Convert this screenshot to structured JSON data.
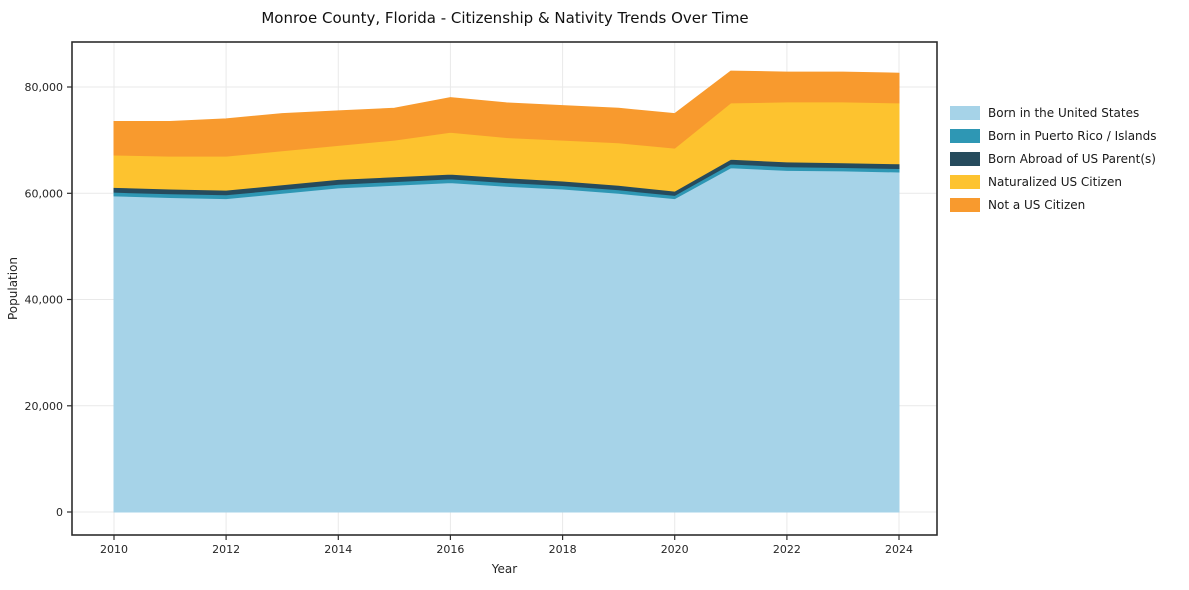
{
  "figure": {
    "title": "Monroe County, Florida - Citizenship & Nativity Trends Over Time"
  },
  "chart_data": {
    "type": "area",
    "stacked": true,
    "title": "Monroe County, Florida - Citizenship & Nativity Trends Over Time",
    "xlabel": "Year",
    "ylabel": "Population",
    "x": [
      2010,
      2011,
      2012,
      2013,
      2014,
      2015,
      2016,
      2017,
      2018,
      2019,
      2020,
      2021,
      2022,
      2023,
      2024
    ],
    "series": [
      {
        "name": "Born in the United States",
        "color": "#a6d3e8",
        "values": [
          59500,
          59200,
          59000,
          60000,
          61000,
          61500,
          62000,
          61300,
          60800,
          60000,
          59000,
          64800,
          64300,
          64200,
          64000
        ]
      },
      {
        "name": "Born in Puerto Rico / Islands",
        "color": "#2e97b4",
        "values": [
          700,
          700,
          700,
          700,
          700,
          700,
          700,
          700,
          650,
          650,
          600,
          700,
          700,
          650,
          650
        ]
      },
      {
        "name": "Born Abroad of US Parent(s)",
        "color": "#264b5d",
        "values": [
          900,
          900,
          900,
          900,
          900,
          900,
          900,
          900,
          850,
          850,
          800,
          900,
          900,
          900,
          900
        ]
      },
      {
        "name": "Naturalized US Citizen",
        "color": "#fdc32f",
        "values": [
          6100,
          6200,
          6400,
          6400,
          6400,
          6900,
          7900,
          7600,
          7700,
          8000,
          8100,
          10600,
          11300,
          11450,
          11450
        ]
      },
      {
        "name": "Not a US Citizen",
        "color": "#f89a2e",
        "values": [
          6300,
          6500,
          7000,
          7000,
          6500,
          6000,
          6500,
          6500,
          6500,
          6500,
          6500,
          6000,
          5600,
          5600,
          5600
        ]
      }
    ],
    "ylim": [
      0,
      80000
    ],
    "xticks": [
      2010,
      2012,
      2014,
      2016,
      2018,
      2020,
      2022,
      2024
    ],
    "yticks": [
      {
        "value": 0,
        "label": "0"
      },
      {
        "value": 20000,
        "label": "20,000"
      },
      {
        "value": 40000,
        "label": "40,000"
      },
      {
        "value": 60000,
        "label": "60,000"
      },
      {
        "value": 80000,
        "label": "80,000"
      }
    ],
    "grid": true,
    "legend_position": "right"
  }
}
